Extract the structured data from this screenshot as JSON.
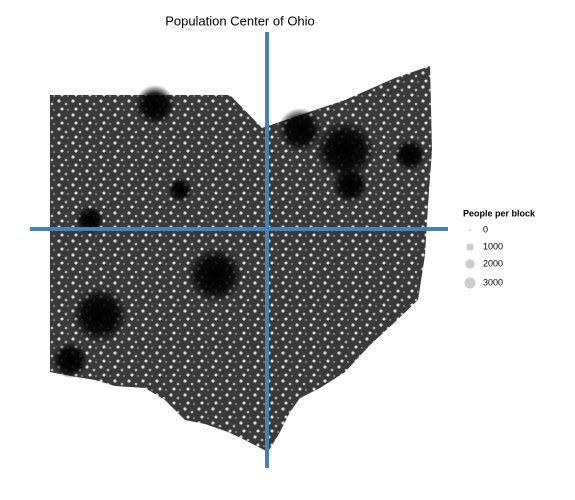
{
  "chart_data": {
    "type": "map",
    "title": "Population Center of Ohio",
    "size_legend": {
      "title": "People per block",
      "values": [
        0,
        1000,
        2000,
        3000
      ]
    }
  }
}
